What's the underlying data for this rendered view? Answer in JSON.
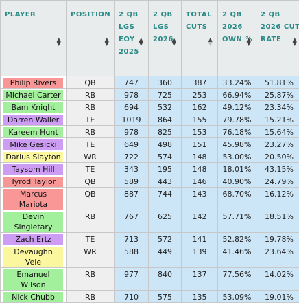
{
  "headers": {
    "player": "PLAYER",
    "position": "POSITION",
    "eoy": "2 QB LGS EOY 2025",
    "lgs2026": "2 QB LGS 2026",
    "cuts": "TOTAL CUTS",
    "own": "2 QB 2026 OWN %",
    "rate": "2 QB 2026 CUT RATE"
  },
  "sort": {
    "column": "TOTAL CUTS",
    "direction": "descending"
  },
  "position_colors": {
    "QB": "#f99797",
    "RB": "#a2ef9c",
    "TE": "#cc9df2",
    "WR": "#faf79f"
  },
  "rows": [
    {
      "player": "Philip Rivers",
      "position": "QB",
      "eoy": "747",
      "lgs2026": "360",
      "cuts": "387",
      "own": "33.24%",
      "rate": "51.81%"
    },
    {
      "player": "Michael Carter",
      "position": "RB",
      "eoy": "978",
      "lgs2026": "725",
      "cuts": "253",
      "own": "66.94%",
      "rate": "25.87%"
    },
    {
      "player": "Bam Knight",
      "position": "RB",
      "eoy": "694",
      "lgs2026": "532",
      "cuts": "162",
      "own": "49.12%",
      "rate": "23.34%"
    },
    {
      "player": "Darren Waller",
      "position": "TE",
      "eoy": "1019",
      "lgs2026": "864",
      "cuts": "155",
      "own": "79.78%",
      "rate": "15.21%"
    },
    {
      "player": "Kareem Hunt",
      "position": "RB",
      "eoy": "978",
      "lgs2026": "825",
      "cuts": "153",
      "own": "76.18%",
      "rate": "15.64%"
    },
    {
      "player": "Mike Gesicki",
      "position": "TE",
      "eoy": "649",
      "lgs2026": "498",
      "cuts": "151",
      "own": "45.98%",
      "rate": "23.27%"
    },
    {
      "player": "Darius Slayton",
      "position": "WR",
      "eoy": "722",
      "lgs2026": "574",
      "cuts": "148",
      "own": "53.00%",
      "rate": "20.50%"
    },
    {
      "player": "Taysom Hill",
      "position": "TE",
      "eoy": "343",
      "lgs2026": "195",
      "cuts": "148",
      "own": "18.01%",
      "rate": "43.15%"
    },
    {
      "player": "Tyrod Taylor",
      "position": "QB",
      "eoy": "589",
      "lgs2026": "443",
      "cuts": "146",
      "own": "40.90%",
      "rate": "24.79%"
    },
    {
      "player": "Marcus Mariota",
      "position": "QB",
      "eoy": "887",
      "lgs2026": "744",
      "cuts": "143",
      "own": "68.70%",
      "rate": "16.12%"
    },
    {
      "player": "Devin Singletary",
      "position": "RB",
      "eoy": "767",
      "lgs2026": "625",
      "cuts": "142",
      "own": "57.71%",
      "rate": "18.51%"
    },
    {
      "player": "Zach Ertz",
      "position": "TE",
      "eoy": "713",
      "lgs2026": "572",
      "cuts": "141",
      "own": "52.82%",
      "rate": "19.78%"
    },
    {
      "player": "Devaughn Vele",
      "position": "WR",
      "eoy": "588",
      "lgs2026": "449",
      "cuts": "139",
      "own": "41.46%",
      "rate": "23.64%"
    },
    {
      "player": "Emanuel Wilson",
      "position": "RB",
      "eoy": "977",
      "lgs2026": "840",
      "cuts": "137",
      "own": "77.56%",
      "rate": "14.02%"
    },
    {
      "player": "Nick Chubb",
      "position": "RB",
      "eoy": "710",
      "lgs2026": "575",
      "cuts": "135",
      "own": "53.09%",
      "rate": "19.01%"
    }
  ]
}
